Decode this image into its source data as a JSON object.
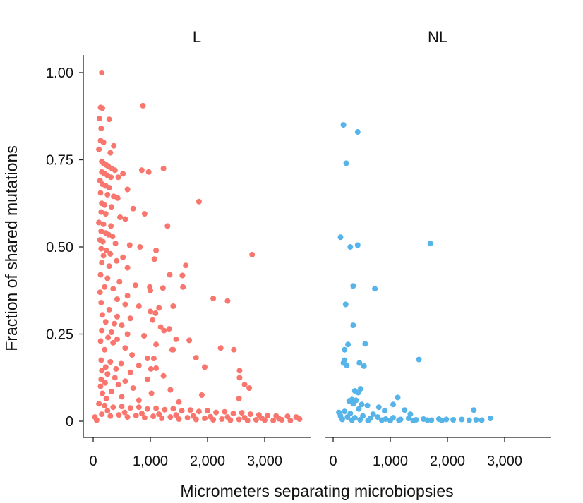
{
  "chart_data": {
    "type": "scatter",
    "xlabel": "Micrometers separating microbiopsies",
    "ylabel": "Fraction of shared mutations",
    "xlim": [
      -100,
      3800
    ],
    "ylim": [
      -0.05,
      1.05
    ],
    "xticks": [
      0,
      1000,
      2000,
      3000
    ],
    "xtick_labels": [
      "0",
      "1,000",
      "2,000",
      "3,000"
    ],
    "yticks": [
      0,
      0.25,
      0.5,
      0.75,
      1.0
    ],
    "ytick_labels": [
      "0",
      "0.25",
      "0.50",
      "0.75",
      "1.00"
    ],
    "grid": false,
    "facets": [
      {
        "title": "L",
        "color": "#f8766d",
        "points": [
          [
            150,
            1.0
          ],
          [
            870,
            0.905
          ],
          [
            130,
            0.9
          ],
          [
            160,
            0.898
          ],
          [
            110,
            0.868
          ],
          [
            280,
            0.866
          ],
          [
            140,
            0.84
          ],
          [
            130,
            0.805
          ],
          [
            180,
            0.8
          ],
          [
            360,
            0.79
          ],
          [
            100,
            0.78
          ],
          [
            300,
            0.77
          ],
          [
            150,
            0.745
          ],
          [
            180,
            0.74
          ],
          [
            230,
            0.735
          ],
          [
            270,
            0.73
          ],
          [
            330,
            0.725
          ],
          [
            380,
            0.72
          ],
          [
            850,
            0.72
          ],
          [
            1230,
            0.725
          ],
          [
            970,
            0.715
          ],
          [
            150,
            0.715
          ],
          [
            200,
            0.71
          ],
          [
            250,
            0.705
          ],
          [
            310,
            0.7
          ],
          [
            440,
            0.7
          ],
          [
            520,
            0.71
          ],
          [
            120,
            0.69
          ],
          [
            160,
            0.68
          ],
          [
            220,
            0.675
          ],
          [
            280,
            0.67
          ],
          [
            600,
            0.665
          ],
          [
            130,
            0.655
          ],
          [
            250,
            0.65
          ],
          [
            360,
            0.645
          ],
          [
            430,
            0.64
          ],
          [
            1850,
            0.63
          ],
          [
            150,
            0.625
          ],
          [
            200,
            0.62
          ],
          [
            320,
            0.615
          ],
          [
            700,
            0.61
          ],
          [
            140,
            0.6
          ],
          [
            220,
            0.595
          ],
          [
            900,
            0.595
          ],
          [
            470,
            0.585
          ],
          [
            560,
            0.58
          ],
          [
            100,
            0.57
          ],
          [
            180,
            0.565
          ],
          [
            310,
            0.56
          ],
          [
            1300,
            0.56
          ],
          [
            140,
            0.545
          ],
          [
            220,
            0.54
          ],
          [
            270,
            0.535
          ],
          [
            340,
            0.53
          ],
          [
            120,
            0.52
          ],
          [
            170,
            0.515
          ],
          [
            390,
            0.51
          ],
          [
            640,
            0.505
          ],
          [
            820,
            0.5
          ],
          [
            140,
            0.495
          ],
          [
            230,
            0.49
          ],
          [
            1100,
            0.49
          ],
          [
            300,
            0.48
          ],
          [
            2780,
            0.478
          ],
          [
            180,
            0.475
          ],
          [
            520,
            0.47
          ],
          [
            1070,
            0.465
          ],
          [
            410,
            0.46
          ],
          [
            150,
            0.455
          ],
          [
            280,
            0.445
          ],
          [
            600,
            0.44
          ],
          [
            1620,
            0.447
          ],
          [
            1340,
            0.42
          ],
          [
            1560,
            0.418
          ],
          [
            130,
            0.42
          ],
          [
            250,
            0.41
          ],
          [
            460,
            0.4
          ],
          [
            740,
            0.39
          ],
          [
            200,
            0.385
          ],
          [
            990,
            0.385
          ],
          [
            350,
            0.38
          ],
          [
            120,
            0.37
          ],
          [
            1000,
            0.375
          ],
          [
            600,
            0.36
          ],
          [
            1220,
            0.382
          ],
          [
            420,
            0.35
          ],
          [
            1570,
            0.385
          ],
          [
            140,
            0.34
          ],
          [
            560,
            0.335
          ],
          [
            2100,
            0.352
          ],
          [
            2350,
            0.345
          ],
          [
            800,
            0.33
          ],
          [
            280,
            0.32
          ],
          [
            1400,
            0.33
          ],
          [
            1000,
            0.315
          ],
          [
            1090,
            0.31
          ],
          [
            1150,
            0.325
          ],
          [
            160,
            0.305
          ],
          [
            420,
            0.3
          ],
          [
            650,
            0.295
          ],
          [
            1040,
            0.29
          ],
          [
            220,
            0.285
          ],
          [
            370,
            0.28
          ],
          [
            500,
            0.275
          ],
          [
            1180,
            0.27
          ],
          [
            150,
            0.26
          ],
          [
            320,
            0.255
          ],
          [
            1330,
            0.265
          ],
          [
            1240,
            0.26
          ],
          [
            600,
            0.25
          ],
          [
            890,
            0.245
          ],
          [
            260,
            0.24
          ],
          [
            420,
            0.235
          ],
          [
            1450,
            0.235
          ],
          [
            130,
            0.23
          ],
          [
            350,
            0.225
          ],
          [
            1100,
            0.22
          ],
          [
            1680,
            0.232
          ],
          [
            560,
            0.21
          ],
          [
            2230,
            0.21
          ],
          [
            2460,
            0.205
          ],
          [
            200,
            0.205
          ],
          [
            1400,
            0.205
          ],
          [
            680,
            0.19
          ],
          [
            1380,
            0.205
          ],
          [
            950,
            0.18
          ],
          [
            1060,
            0.18
          ],
          [
            1800,
            0.182
          ],
          [
            140,
            0.175
          ],
          [
            300,
            0.17
          ],
          [
            490,
            0.165
          ],
          [
            800,
            0.16
          ],
          [
            220,
            0.155
          ],
          [
            400,
            0.15
          ],
          [
            1010,
            0.15
          ],
          [
            1100,
            0.152
          ],
          [
            1950,
            0.155
          ],
          [
            150,
            0.145
          ],
          [
            650,
            0.14
          ],
          [
            2560,
            0.145
          ],
          [
            250,
            0.135
          ],
          [
            1230,
            0.13
          ],
          [
            380,
            0.125
          ],
          [
            2560,
            0.125
          ],
          [
            140,
            0.12
          ],
          [
            560,
            0.115
          ],
          [
            950,
            0.12
          ],
          [
            210,
            0.11
          ],
          [
            440,
            0.105
          ],
          [
            2650,
            0.105
          ],
          [
            130,
            0.1
          ],
          [
            700,
            0.095
          ],
          [
            1350,
            0.09
          ],
          [
            2730,
            0.095
          ],
          [
            320,
            0.085
          ],
          [
            1020,
            0.08
          ],
          [
            160,
            0.08
          ],
          [
            1900,
            0.075
          ],
          [
            500,
            0.07
          ],
          [
            2550,
            0.065
          ],
          [
            230,
            0.065
          ],
          [
            800,
            0.06
          ],
          [
            1500,
            0.055
          ],
          [
            100,
            0.05
          ],
          [
            200,
            0.045
          ],
          [
            350,
            0.04
          ],
          [
            500,
            0.042
          ],
          [
            650,
            0.038
          ],
          [
            800,
            0.04
          ],
          [
            950,
            0.035
          ],
          [
            1100,
            0.037
          ],
          [
            1250,
            0.033
          ],
          [
            1400,
            0.036
          ],
          [
            1550,
            0.03
          ],
          [
            1700,
            0.032
          ],
          [
            1850,
            0.028
          ],
          [
            2000,
            0.03
          ],
          [
            2150,
            0.025
          ],
          [
            2300,
            0.027
          ],
          [
            2450,
            0.022
          ],
          [
            2600,
            0.024
          ],
          [
            2750,
            0.02
          ],
          [
            2900,
            0.018
          ],
          [
            3050,
            0.016
          ],
          [
            3200,
            0.015
          ],
          [
            3400,
            0.014
          ],
          [
            3550,
            0.012
          ],
          [
            3610,
            0.006
          ],
          [
            150,
            0.02
          ],
          [
            300,
            0.015
          ],
          [
            450,
            0.018
          ],
          [
            600,
            0.012
          ],
          [
            750,
            0.016
          ],
          [
            900,
            0.01
          ],
          [
            1050,
            0.014
          ],
          [
            1200,
            0.008
          ],
          [
            1350,
            0.012
          ],
          [
            1500,
            0.006
          ],
          [
            1650,
            0.01
          ],
          [
            1800,
            0.005
          ],
          [
            1950,
            0.008
          ],
          [
            2100,
            0.004
          ],
          [
            2250,
            0.006
          ],
          [
            2400,
            0.003
          ],
          [
            2550,
            0.005
          ],
          [
            2700,
            0.002
          ],
          [
            2850,
            0.004
          ],
          [
            3000,
            0.003
          ],
          [
            3150,
            0.002
          ],
          [
            3300,
            0.004
          ],
          [
            3450,
            0.002
          ],
          [
            250,
            0.03
          ],
          [
            550,
            0.025
          ],
          [
            850,
            0.022
          ],
          [
            1150,
            0.02
          ],
          [
            1450,
            0.018
          ],
          [
            1750,
            0.015
          ],
          [
            2050,
            0.013
          ],
          [
            2350,
            0.012
          ],
          [
            2650,
            0.01
          ],
          [
            2950,
            0.008
          ],
          [
            3250,
            0.007
          ],
          [
            30,
            0.012
          ],
          [
            60,
            0.003
          ]
        ]
      },
      {
        "title": "NL",
        "color": "#56b4e9",
        "points": [
          [
            180,
            0.85
          ],
          [
            430,
            0.83
          ],
          [
            230,
            0.74
          ],
          [
            130,
            0.528
          ],
          [
            300,
            0.5
          ],
          [
            430,
            0.505
          ],
          [
            1700,
            0.51
          ],
          [
            350,
            0.388
          ],
          [
            730,
            0.38
          ],
          [
            220,
            0.335
          ],
          [
            350,
            0.275
          ],
          [
            560,
            0.222
          ],
          [
            260,
            0.22
          ],
          [
            200,
            0.205
          ],
          [
            1500,
            0.177
          ],
          [
            200,
            0.175
          ],
          [
            180,
            0.167
          ],
          [
            460,
            0.167
          ],
          [
            240,
            0.16
          ],
          [
            540,
            0.158
          ],
          [
            480,
            0.093
          ],
          [
            380,
            0.087
          ],
          [
            440,
            0.082
          ],
          [
            330,
            0.062
          ],
          [
            400,
            0.06
          ],
          [
            1130,
            0.068
          ],
          [
            280,
            0.058
          ],
          [
            350,
            0.05
          ],
          [
            500,
            0.048
          ],
          [
            600,
            0.045
          ],
          [
            800,
            0.04
          ],
          [
            1050,
            0.048
          ],
          [
            450,
            0.035
          ],
          [
            900,
            0.03
          ],
          [
            1250,
            0.032
          ],
          [
            2460,
            0.032
          ],
          [
            100,
            0.025
          ],
          [
            200,
            0.028
          ],
          [
            300,
            0.022
          ],
          [
            700,
            0.02
          ],
          [
            1350,
            0.02
          ],
          [
            130,
            0.015
          ],
          [
            250,
            0.012
          ],
          [
            380,
            0.01
          ],
          [
            520,
            0.015
          ],
          [
            650,
            0.008
          ],
          [
            780,
            0.012
          ],
          [
            920,
            0.006
          ],
          [
            1050,
            0.01
          ],
          [
            1180,
            0.005
          ],
          [
            1320,
            0.008
          ],
          [
            1450,
            0.004
          ],
          [
            1580,
            0.006
          ],
          [
            1720,
            0.003
          ],
          [
            1850,
            0.006
          ],
          [
            1980,
            0.005
          ],
          [
            2100,
            0.004
          ],
          [
            2250,
            0.005
          ],
          [
            2380,
            0.003
          ],
          [
            2500,
            0.004
          ],
          [
            2600,
            0.003
          ],
          [
            2750,
            0.008
          ],
          [
            160,
            0.005
          ],
          [
            330,
            0.003
          ],
          [
            470,
            0.004
          ],
          [
            610,
            0.002
          ],
          [
            850,
            0.003
          ],
          [
            1000,
            0.002
          ],
          [
            1150,
            0.003
          ],
          [
            1400,
            0.002
          ],
          [
            1650,
            0.003
          ],
          [
            1900,
            0.002
          ]
        ]
      }
    ]
  }
}
